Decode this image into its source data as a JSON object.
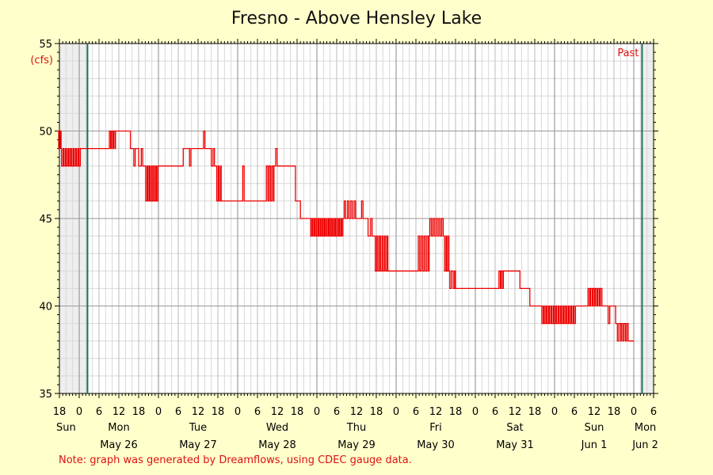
{
  "chart_data": {
    "type": "line",
    "title": "Fresno - Above Hensley Lake",
    "yunit": "(cfs)",
    "ylim": [
      35,
      55
    ],
    "yticks": [
      35,
      40,
      45,
      50,
      55
    ],
    "xlim": [
      -6,
      174
    ],
    "hour_ticks": [
      {
        "h": -6,
        "label": "18"
      },
      {
        "h": 0,
        "label": "0"
      },
      {
        "h": 6,
        "label": "6"
      },
      {
        "h": 12,
        "label": "12"
      },
      {
        "h": 18,
        "label": "18"
      },
      {
        "h": 24,
        "label": "0"
      },
      {
        "h": 30,
        "label": "6"
      },
      {
        "h": 36,
        "label": "12"
      },
      {
        "h": 42,
        "label": "18"
      },
      {
        "h": 48,
        "label": "0"
      },
      {
        "h": 54,
        "label": "6"
      },
      {
        "h": 60,
        "label": "12"
      },
      {
        "h": 66,
        "label": "18"
      },
      {
        "h": 72,
        "label": "0"
      },
      {
        "h": 78,
        "label": "6"
      },
      {
        "h": 84,
        "label": "12"
      },
      {
        "h": 90,
        "label": "18"
      },
      {
        "h": 96,
        "label": "0"
      },
      {
        "h": 102,
        "label": "6"
      },
      {
        "h": 108,
        "label": "12"
      },
      {
        "h": 114,
        "label": "18"
      },
      {
        "h": 120,
        "label": "0"
      },
      {
        "h": 126,
        "label": "6"
      },
      {
        "h": 132,
        "label": "12"
      },
      {
        "h": 138,
        "label": "18"
      },
      {
        "h": 144,
        "label": "0"
      },
      {
        "h": 150,
        "label": "6"
      },
      {
        "h": 156,
        "label": "12"
      },
      {
        "h": 162,
        "label": "18"
      },
      {
        "h": 168,
        "label": "0"
      },
      {
        "h": 174,
        "label": "6"
      }
    ],
    "day_labels": [
      {
        "h": -4,
        "day": "Sun",
        "date": ""
      },
      {
        "h": 12,
        "day": "Mon",
        "date": "May 26"
      },
      {
        "h": 36,
        "day": "Tue",
        "date": "May 27"
      },
      {
        "h": 60,
        "day": "Wed",
        "date": "May 28"
      },
      {
        "h": 84,
        "day": "Thu",
        "date": "May 29"
      },
      {
        "h": 108,
        "day": "Fri",
        "date": "May 30"
      },
      {
        "h": 132,
        "day": "Sat",
        "date": "May 31"
      },
      {
        "h": 156,
        "day": "Sun",
        "date": "Jun 1"
      },
      {
        "h": 171.5,
        "day": "Mon",
        "date": "Jun 2"
      }
    ],
    "shaded_before": 2.5,
    "shaded_after": 170.5,
    "past_label": "Past",
    "series": [
      {
        "color": "#ee0000",
        "segments": [
          {
            "h0": -6.5,
            "h1": -5.5,
            "level": 50,
            "dips": [
              49
            ]
          },
          {
            "h0": -5.5,
            "h1": -2.5,
            "level": 49,
            "dips": [
              48,
              48,
              48,
              48
            ]
          },
          {
            "h0": -2.5,
            "h1": 0.5,
            "level": 49,
            "dips": [
              48,
              48,
              48,
              48
            ]
          },
          {
            "h0": 0.5,
            "h1": 9,
            "level": 49,
            "dips": []
          },
          {
            "h0": 9,
            "h1": 11,
            "level": 49,
            "dips": [
              50,
              50,
              50
            ]
          },
          {
            "h0": 11,
            "h1": 15.5,
            "level": 50,
            "dips": []
          },
          {
            "h0": 15.5,
            "h1": 18,
            "level": 49,
            "dips": [
              48
            ]
          },
          {
            "h0": 18,
            "h1": 20,
            "level": 48,
            "dips": [
              49
            ]
          },
          {
            "h0": 20,
            "h1": 24,
            "level": 48,
            "dips": [
              46,
              46,
              46,
              46,
              46,
              46
            ]
          },
          {
            "h0": 24,
            "h1": 31.5,
            "level": 48,
            "dips": []
          },
          {
            "h0": 31.5,
            "h1": 40,
            "level": 49,
            "dips": [
              48,
              50
            ]
          },
          {
            "h0": 40,
            "h1": 41.5,
            "level": 48,
            "dips": [
              49
            ]
          },
          {
            "h0": 41.5,
            "h1": 43,
            "level": 48,
            "dips": [
              46,
              46
            ]
          },
          {
            "h0": 43,
            "h1": 56.5,
            "level": 46,
            "dips": [
              48
            ]
          },
          {
            "h0": 56.5,
            "h1": 59,
            "level": 46,
            "dips": [
              48,
              48,
              48
            ]
          },
          {
            "h0": 59,
            "h1": 60.5,
            "level": 48,
            "dips": [
              49
            ]
          },
          {
            "h0": 60.5,
            "h1": 65.5,
            "level": 48,
            "dips": []
          },
          {
            "h0": 65.5,
            "h1": 67,
            "level": 46,
            "dips": []
          },
          {
            "h0": 67,
            "h1": 70,
            "level": 45,
            "dips": []
          },
          {
            "h0": 70,
            "h1": 80,
            "level": 45,
            "dips": [
              44,
              44,
              44,
              44,
              44,
              44,
              44,
              44,
              44,
              44,
              44,
              44,
              44,
              44,
              44,
              44
            ]
          },
          {
            "h0": 80,
            "h1": 84,
            "level": 45,
            "dips": [
              46,
              46,
              46,
              46
            ]
          },
          {
            "h0": 84,
            "h1": 87.5,
            "level": 45,
            "dips": [
              46
            ]
          },
          {
            "h0": 87.5,
            "h1": 89.5,
            "level": 44,
            "dips": [
              45
            ]
          },
          {
            "h0": 89.5,
            "h1": 93.5,
            "level": 44,
            "dips": [
              42,
              42,
              42,
              42,
              42
            ]
          },
          {
            "h0": 93.5,
            "h1": 102.5,
            "level": 42,
            "dips": []
          },
          {
            "h0": 102.5,
            "h1": 106,
            "level": 42,
            "dips": [
              44,
              44,
              44,
              44
            ]
          },
          {
            "h0": 106,
            "h1": 110.5,
            "level": 44,
            "dips": [
              45,
              45,
              45,
              45,
              45
            ]
          },
          {
            "h0": 110.5,
            "h1": 112,
            "level": 44,
            "dips": [
              42,
              42
            ]
          },
          {
            "h0": 112,
            "h1": 114,
            "level": 42,
            "dips": [
              41,
              41
            ]
          },
          {
            "h0": 114,
            "h1": 127,
            "level": 41,
            "dips": []
          },
          {
            "h0": 127,
            "h1": 128.5,
            "level": 41,
            "dips": [
              42,
              42
            ]
          },
          {
            "h0": 128.5,
            "h1": 133.5,
            "level": 42,
            "dips": []
          },
          {
            "h0": 133.5,
            "h1": 136.5,
            "level": 41,
            "dips": []
          },
          {
            "h0": 136.5,
            "h1": 140,
            "level": 40,
            "dips": []
          },
          {
            "h0": 140,
            "h1": 150.5,
            "level": 40,
            "dips": [
              39,
              39,
              39,
              39,
              39,
              39,
              39,
              39,
              39,
              39,
              39,
              39,
              39,
              39
            ]
          },
          {
            "h0": 150.5,
            "h1": 154,
            "level": 40,
            "dips": []
          },
          {
            "h0": 154,
            "h1": 158.5,
            "level": 40,
            "dips": [
              41,
              41,
              41,
              41,
              41,
              41
            ]
          },
          {
            "h0": 158.5,
            "h1": 162.5,
            "level": 40,
            "dips": [
              39
            ]
          },
          {
            "h0": 162.5,
            "h1": 164,
            "level": 39,
            "dips": [
              38
            ]
          },
          {
            "h0": 164,
            "h1": 166.5,
            "level": 38,
            "dips": [
              39,
              39,
              39
            ]
          },
          {
            "h0": 166.5,
            "h1": 168,
            "level": 38,
            "dips": []
          }
        ]
      }
    ]
  },
  "note": "Note: graph was generated by Dreamflows, using CDEC gauge data."
}
